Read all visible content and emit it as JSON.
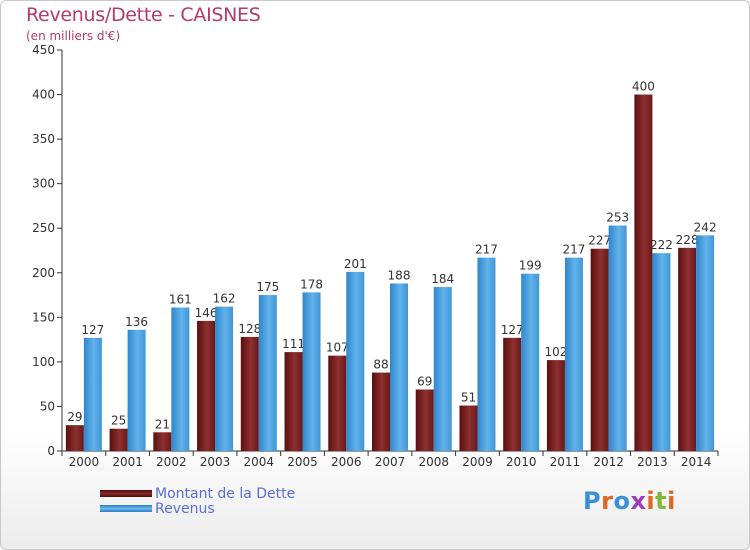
{
  "title": "Revenus/Dette - CAISNES",
  "subtitle": "(en milliers d'€)",
  "colors": {
    "debt": "#7a1c1c",
    "debt_light": "#9a3a3a",
    "revenue": "#3f94d6",
    "revenue_light": "#5aade6",
    "axis": "#333333",
    "grid": "#dddddd"
  },
  "legend": [
    {
      "label": "Montant de la Dette",
      "color": "#6e1010"
    },
    {
      "label": "Revenus",
      "color": "#3f94d6"
    }
  ],
  "logo": {
    "text": "Proxiti"
  },
  "chart_data": {
    "type": "bar",
    "categories": [
      "2000",
      "2001",
      "2002",
      "2003",
      "2004",
      "2005",
      "2006",
      "2007",
      "2008",
      "2009",
      "2010",
      "2011",
      "2012",
      "2013",
      "2014"
    ],
    "series": [
      {
        "name": "Montant de la Dette",
        "values": [
          29,
          25,
          21,
          146,
          128,
          111,
          107,
          88,
          69,
          51,
          127,
          102,
          227,
          400,
          228
        ]
      },
      {
        "name": "Revenus",
        "values": [
          127,
          136,
          161,
          162,
          175,
          178,
          201,
          188,
          184,
          217,
          199,
          217,
          253,
          222,
          242
        ]
      }
    ],
    "ylim": [
      0,
      450
    ],
    "yticks": [
      0,
      50,
      100,
      150,
      200,
      250,
      300,
      350,
      400,
      450
    ],
    "grid": false,
    "legend_position": "bottom-left"
  }
}
